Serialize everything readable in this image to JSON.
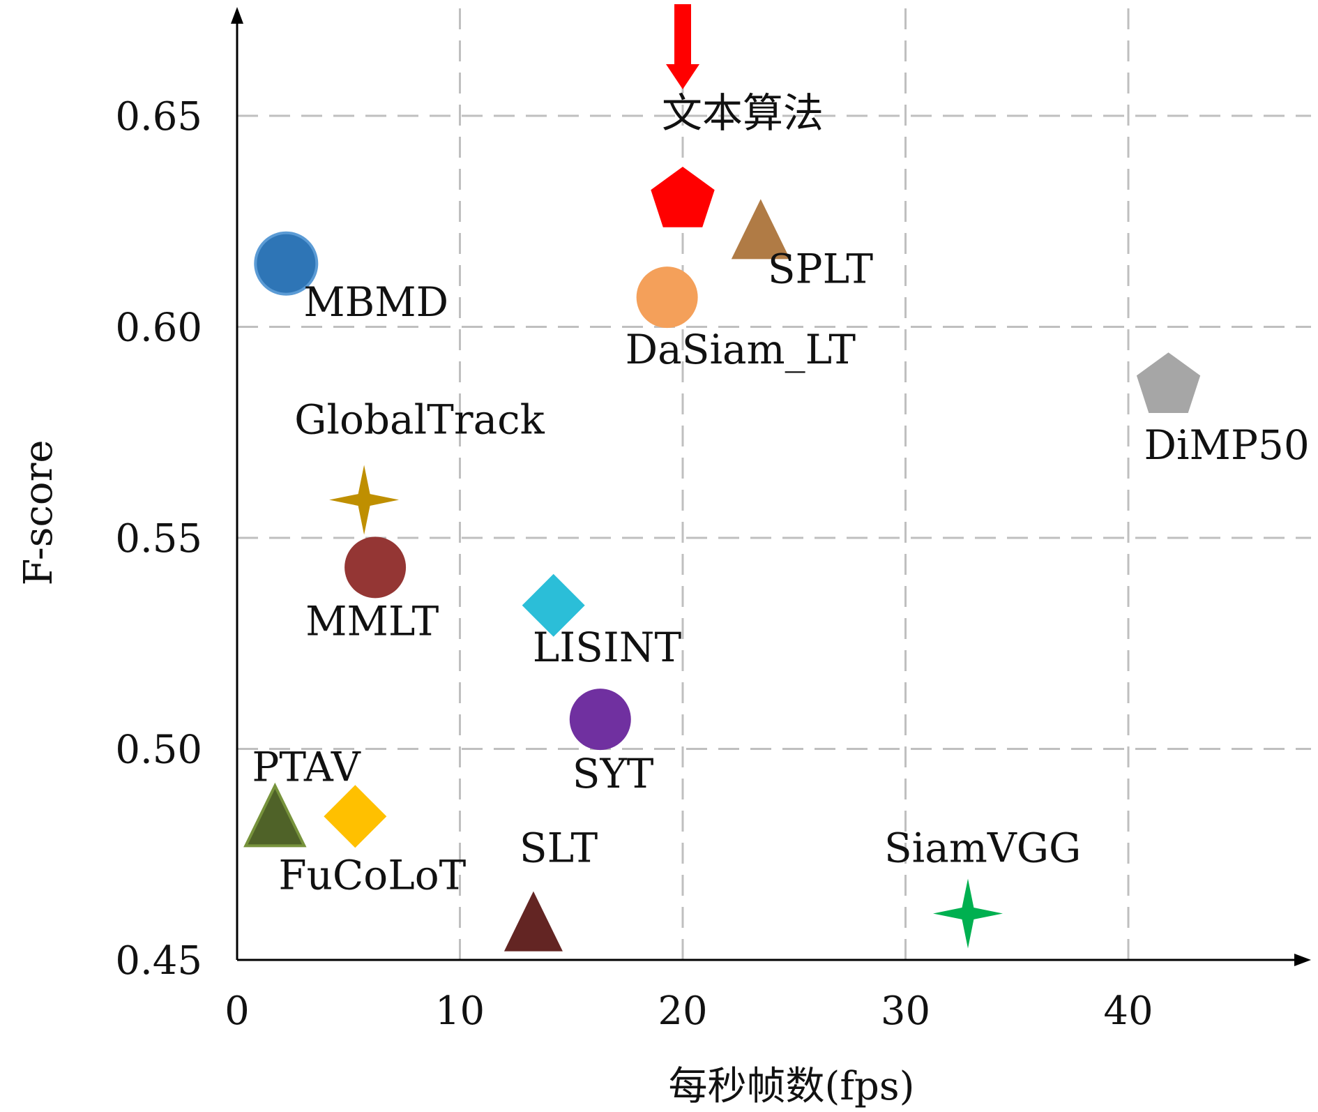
{
  "chart_data": {
    "type": "scatter",
    "xlabel": "每秒帧数(fps)",
    "ylabel": "F-score",
    "xlim": [
      0,
      48
    ],
    "ylim": [
      0.45,
      0.675
    ],
    "xticks": [
      0,
      10,
      20,
      30,
      40
    ],
    "xtick_labels": [
      "0",
      "10",
      "20",
      "30",
      "40"
    ],
    "yticks": [
      0.45,
      0.5,
      0.55,
      0.6,
      0.65
    ],
    "ytick_labels": [
      "0.45",
      "0.50",
      "0.55",
      "0.60",
      "0.65"
    ],
    "grid": true,
    "legend": "none",
    "points": [
      {
        "name": "文本算法",
        "x": 20.0,
        "y": 0.63,
        "marker": "pentagon",
        "color": "#ff0000",
        "highlight": true
      },
      {
        "name": "SPLT",
        "x": 23.5,
        "y": 0.622,
        "marker": "triangle",
        "color": "#b07b45"
      },
      {
        "name": "MBMD",
        "x": 2.2,
        "y": 0.615,
        "marker": "circle",
        "color": "#2e75b6"
      },
      {
        "name": "DaSiam_LT",
        "x": 19.3,
        "y": 0.607,
        "marker": "circle",
        "color": "#f4a05a"
      },
      {
        "name": "DiMP50",
        "x": 41.8,
        "y": 0.586,
        "marker": "pentagon",
        "color": "#a6a6a6"
      },
      {
        "name": "GlobalTrack",
        "x": 5.7,
        "y": 0.559,
        "marker": "star4",
        "color": "#bf8f00"
      },
      {
        "name": "MMLT",
        "x": 6.2,
        "y": 0.543,
        "marker": "circle",
        "color": "#943634"
      },
      {
        "name": "LISINT",
        "x": 14.2,
        "y": 0.534,
        "marker": "diamond",
        "color": "#2bbed8"
      },
      {
        "name": "SYT",
        "x": 16.3,
        "y": 0.507,
        "marker": "circle",
        "color": "#7030a0"
      },
      {
        "name": "PTAV",
        "x": 1.7,
        "y": 0.483,
        "marker": "triangle",
        "color": "#4f6228"
      },
      {
        "name": "FuCoLoT",
        "x": 5.3,
        "y": 0.484,
        "marker": "diamond",
        "color": "#ffc000"
      },
      {
        "name": "SLT",
        "x": 13.3,
        "y": 0.458,
        "marker": "triangle",
        "color": "#632523"
      },
      {
        "name": "SiamVGG",
        "x": 32.8,
        "y": 0.461,
        "marker": "star4",
        "color": "#00b050"
      }
    ],
    "colors": {
      "axis": "#000000",
      "grid": "#bfbfbf",
      "arrow": "#ff0000"
    }
  }
}
